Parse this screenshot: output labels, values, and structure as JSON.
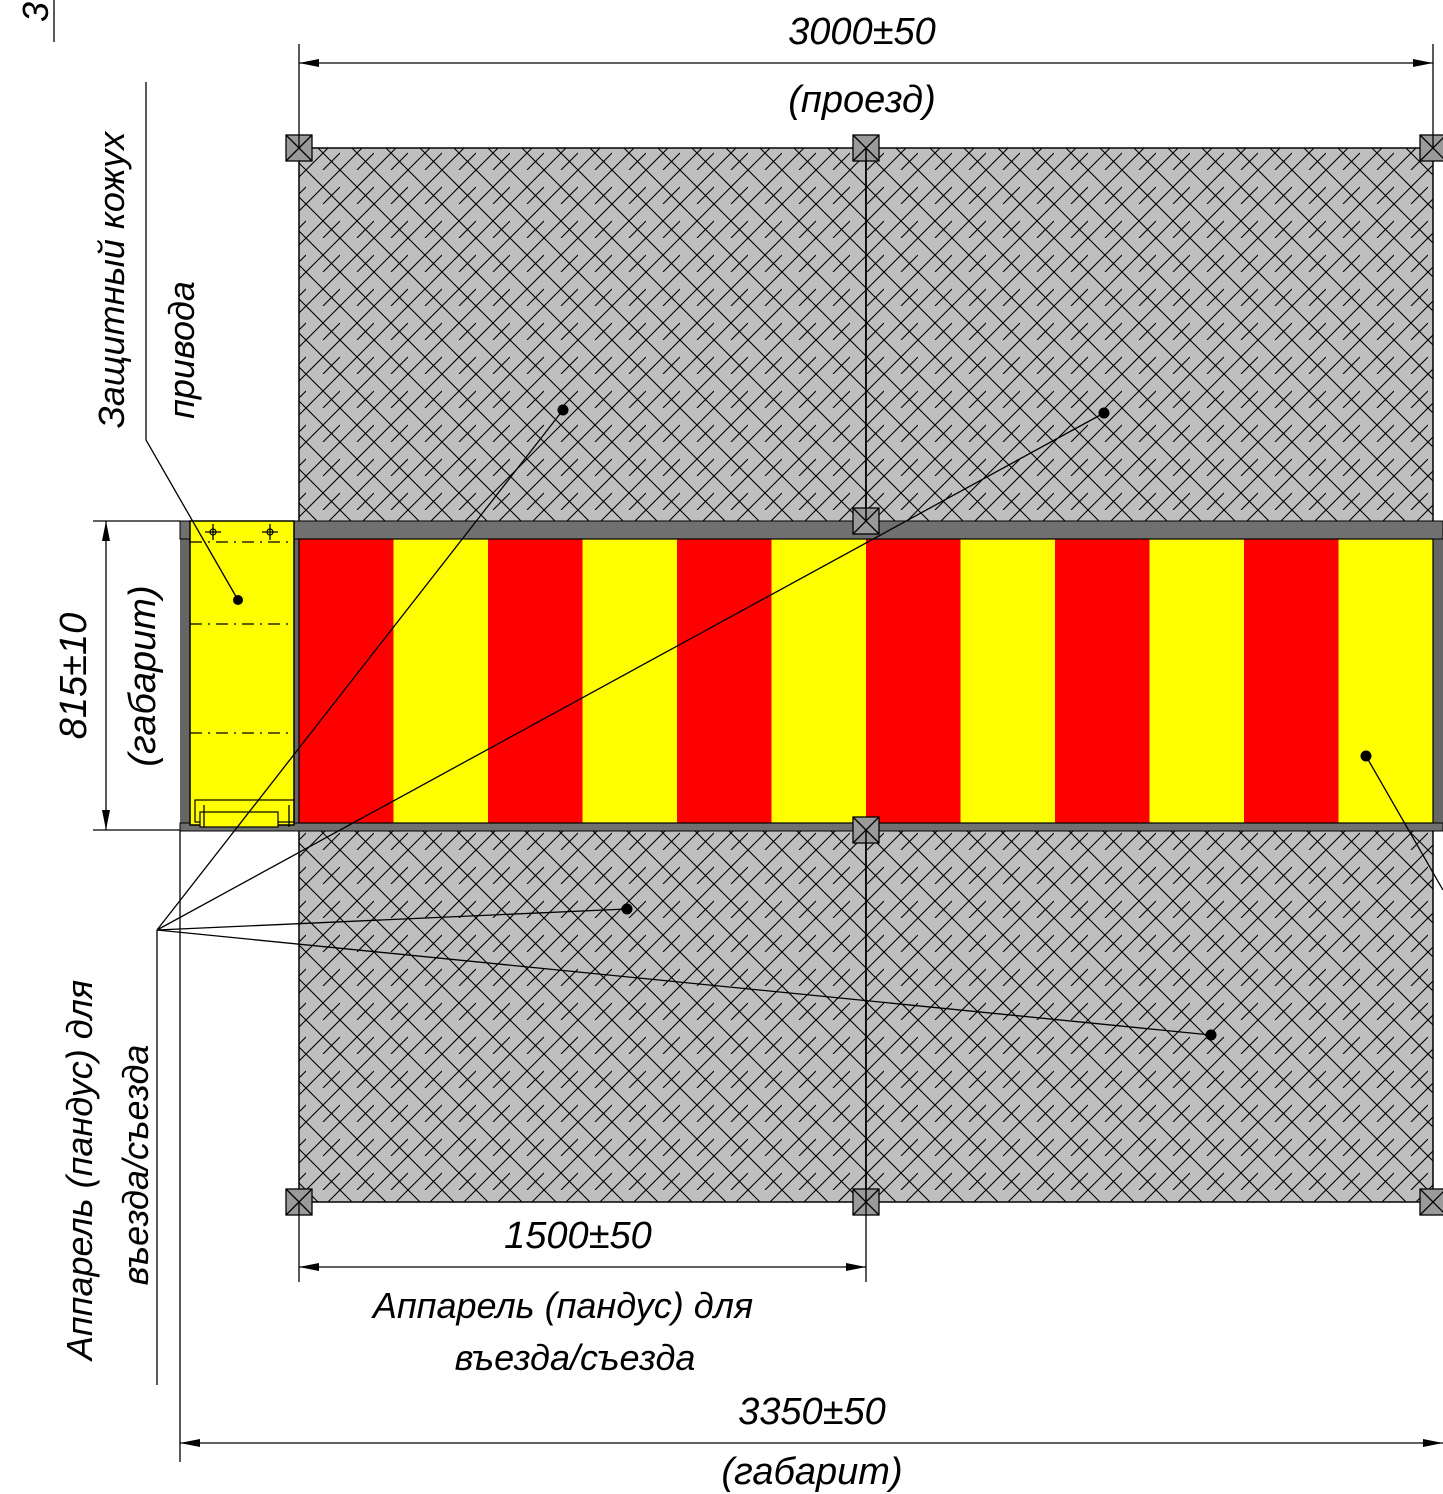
{
  "drawing": {
    "colors": {
      "stripe_red": "#ff0000",
      "stripe_yellow": "#ffff00",
      "ramp_fill": "#bfbfbf",
      "frame_gray": "#666666",
      "cover_fill": "#ffff00"
    },
    "stripe_count": 12,
    "dimensions": {
      "top_width_value": "3000±50",
      "top_width_note": "(проезд)",
      "height_value": "815±10",
      "height_note": "(габарит)",
      "ramp_width_value": "1500±50",
      "overall_width_value": "3350±50",
      "overall_width_note": "(габарит)"
    },
    "labels": {
      "cover_line1": "Защитный кожух",
      "cover_line2": "привода",
      "ramp_left_line1": "Аппарель (пандус) для",
      "ramp_left_line2": "въезда/съезда",
      "ramp_bottom_line1": "Аппарель (пандус) для",
      "ramp_bottom_line2": "въезда/съезда",
      "corner_fragment": "3"
    }
  }
}
